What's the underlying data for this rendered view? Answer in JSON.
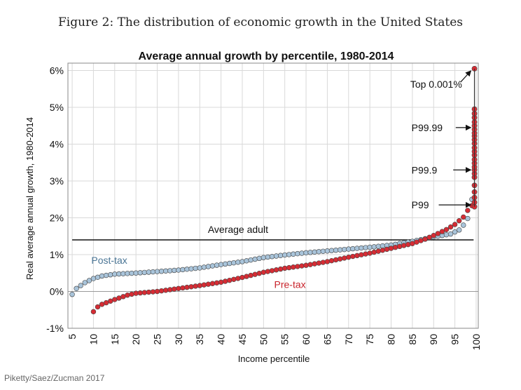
{
  "figure_caption": "Figure 2: The distribution of economic growth in the United States",
  "credit": "Piketty/Saez/Zucman 2017",
  "chart_data": {
    "type": "scatter",
    "title": "Average annual growth by percentile, 1980-2014",
    "xlabel": "Income percentile",
    "ylabel": "Real average annual growth, 1980-2014",
    "xlim": [
      4,
      100.5
    ],
    "ylim": [
      -1,
      6.2
    ],
    "x_ticks": [
      "5",
      "10",
      "15",
      "20",
      "25",
      "30",
      "35",
      "40",
      "45",
      "50",
      "55",
      "60",
      "65",
      "70",
      "75",
      "80",
      "85",
      "90",
      "95",
      "100"
    ],
    "y_ticks": [
      "-1%",
      "0%",
      "1%",
      "2%",
      "3%",
      "4%",
      "5%",
      "6%"
    ],
    "grid": true,
    "series": [
      {
        "name": "Post-tax",
        "color": "#a9c4da",
        "anchors": [
          [
            5,
            -0.08
          ],
          [
            6,
            0.08
          ],
          [
            8,
            0.24
          ],
          [
            10,
            0.35
          ],
          [
            12,
            0.42
          ],
          [
            15,
            0.47
          ],
          [
            20,
            0.5
          ],
          [
            25,
            0.54
          ],
          [
            30,
            0.58
          ],
          [
            35,
            0.64
          ],
          [
            40,
            0.73
          ],
          [
            45,
            0.81
          ],
          [
            50,
            0.92
          ],
          [
            55,
            0.99
          ],
          [
            60,
            1.05
          ],
          [
            65,
            1.1
          ],
          [
            70,
            1.15
          ],
          [
            75,
            1.2
          ],
          [
            80,
            1.26
          ],
          [
            85,
            1.36
          ],
          [
            90,
            1.48
          ],
          [
            94,
            1.56
          ],
          [
            96,
            1.67
          ],
          [
            97,
            1.8
          ],
          [
            98,
            1.98
          ],
          [
            98.8,
            2.3
          ],
          [
            99,
            2.5
          ]
        ]
      },
      {
        "name": "Pre-tax",
        "color": "#d62c34",
        "anchors": [
          [
            10,
            -0.55
          ],
          [
            11,
            -0.42
          ],
          [
            12,
            -0.35
          ],
          [
            15,
            -0.22
          ],
          [
            18,
            -0.1
          ],
          [
            20,
            -0.05
          ],
          [
            25,
            0.0
          ],
          [
            30,
            0.08
          ],
          [
            35,
            0.16
          ],
          [
            40,
            0.25
          ],
          [
            45,
            0.38
          ],
          [
            50,
            0.52
          ],
          [
            55,
            0.63
          ],
          [
            60,
            0.71
          ],
          [
            65,
            0.81
          ],
          [
            70,
            0.93
          ],
          [
            75,
            1.04
          ],
          [
            80,
            1.17
          ],
          [
            85,
            1.3
          ],
          [
            88,
            1.42
          ],
          [
            90,
            1.52
          ],
          [
            93,
            1.68
          ],
          [
            95,
            1.82
          ],
          [
            97,
            2.02
          ],
          [
            98,
            2.2
          ],
          [
            99,
            2.33
          ]
        ]
      }
    ],
    "top_points": [
      2.3,
      2.42,
      2.55,
      2.7,
      2.88,
      3.1,
      3.2,
      3.3,
      3.38,
      3.48,
      3.58,
      3.7,
      3.8,
      3.9,
      4.02,
      4.12,
      4.22,
      4.3,
      4.4,
      4.5,
      4.6,
      4.72,
      4.83,
      4.95,
      6.05
    ],
    "reference_line": {
      "label": "Average adult",
      "value": 1.4
    },
    "series_labels": [
      {
        "text": "Post-tax",
        "color": "#4a7595"
      },
      {
        "text": "Pre-tax",
        "color": "#c8232b"
      }
    ],
    "annotations": [
      {
        "text": "Top 0.001%",
        "target_y": 6.05
      },
      {
        "text": "P99.99",
        "target_y": 4.45
      },
      {
        "text": "P99.9",
        "target_y": 3.3
      },
      {
        "text": "P99",
        "target_y": 2.35
      }
    ]
  }
}
